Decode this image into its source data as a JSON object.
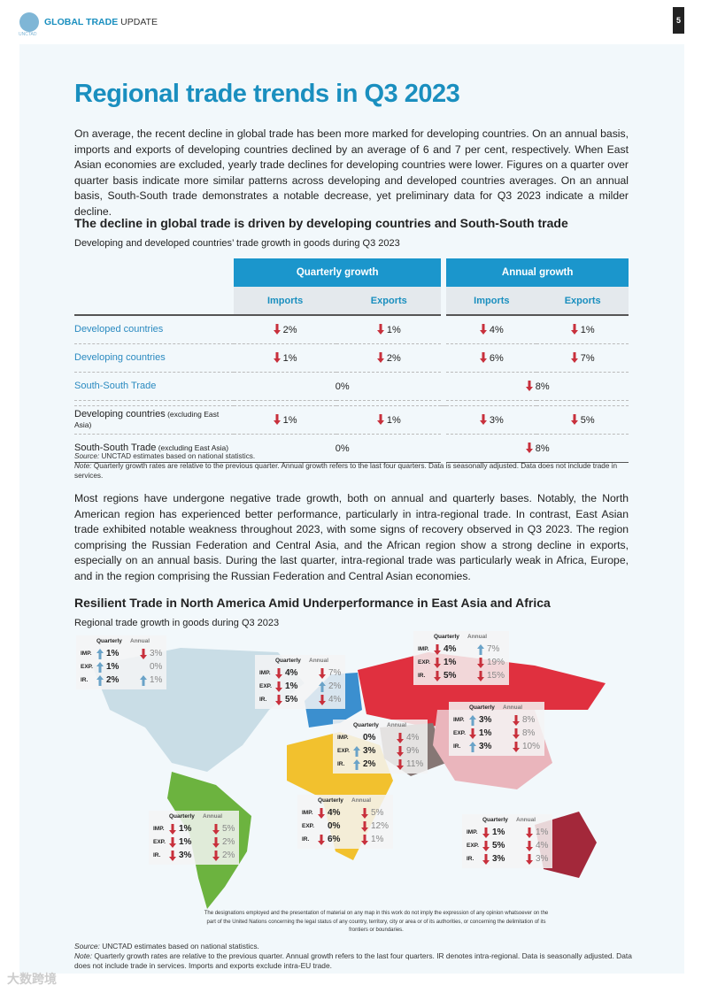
{
  "header": {
    "logo_text": "UNCTAD",
    "title_bold": "GLOBAL TRADE",
    "title_rest": " UPDATE",
    "page_number": "5"
  },
  "title": "Regional trade trends in Q3 2023",
  "intro": "On average, the recent decline in global trade has been more marked for developing countries. On an annual basis, imports and exports of developing countries declined by an average of 6 and 7 per cent, respectively. When East Asian economies are excluded, yearly trade declines for developing countries were lower. Figures on a quarter over quarter basis indicate more similar patterns across developing and developed countries averages. On an annual basis, South-South trade demonstrates a notable decrease, yet preliminary data for Q3 2023 indicate a milder decline.",
  "section1": {
    "heading": "The decline in global trade is driven by developing countries and South-South trade",
    "subheading": "Developing and developed countries’ trade growth in goods during Q3 2023"
  },
  "colors": {
    "accent": "#1b96cc",
    "down": "#c8303c",
    "up": "#6aa3c8"
  },
  "table": {
    "groups": [
      "Quarterly growth",
      "Annual growth"
    ],
    "subheaders": [
      "Imports",
      "Exports",
      "Imports",
      "Exports"
    ],
    "rows": [
      {
        "label": "Developed countries",
        "note": "",
        "cells": [
          {
            "v": "2%",
            "d": "down"
          },
          {
            "v": "1%",
            "d": "down"
          },
          {
            "v": "4%",
            "d": "down"
          },
          {
            "v": "1%",
            "d": "down"
          }
        ]
      },
      {
        "label": "Developing countries",
        "note": "",
        "cells": [
          {
            "v": "1%",
            "d": "down"
          },
          {
            "v": "2%",
            "d": "down"
          },
          {
            "v": "6%",
            "d": "down"
          },
          {
            "v": "7%",
            "d": "down"
          }
        ]
      },
      {
        "label": "South-South Trade",
        "note": "",
        "merged": [
          {
            "v": "0%",
            "d": "none"
          },
          {
            "v": "8%",
            "d": "down"
          }
        ]
      },
      {
        "label": "Developing countries",
        "note": " (excluding East Asia)",
        "cells": [
          {
            "v": "1%",
            "d": "down"
          },
          {
            "v": "1%",
            "d": "down"
          },
          {
            "v": "3%",
            "d": "down"
          },
          {
            "v": "5%",
            "d": "down"
          }
        ]
      },
      {
        "label": "South-South Trade",
        "note": " (excluding East Asia)",
        "merged": [
          {
            "v": "0%",
            "d": "none"
          },
          {
            "v": "8%",
            "d": "down"
          }
        ]
      }
    ],
    "source_label": "Source:",
    "source": " UNCTAD estimates based on national statistics.",
    "note_label": "Note:",
    "note": " Quarterly growth rates are relative to the previous quarter. Annual growth refers to the last four quarters. Data is seasonally adjusted. Data does not include trade in services."
  },
  "para2": "Most regions have undergone negative trade growth, both on annual and quarterly bases. Notably, the North American region has experienced better performance, particularly in intra-regional trade. In contrast, East Asian trade exhibited notable weakness throughout 2023, with some signs of recovery observed in Q3 2023. The region comprising the Russian Federation and Central Asia, and the African region show a strong decline in exports, especially on an annual basis. During the last quarter, intra-regional trade was particularly weak in Africa, Europe, and in the region comprising the Russian Federation and Central Asian economies.",
  "section2": {
    "heading": "Resilient Trade in North America Amid Underperformance in East Asia and Africa",
    "subheading": "Regional trade growth in goods during Q3 2023"
  },
  "map": {
    "col_quarterly": "Quarterly",
    "col_annual": "Annual",
    "row_labels": [
      "IMP.",
      "EXP.",
      "IR."
    ],
    "regions": [
      {
        "id": "north-america",
        "rows": [
          [
            {
              "v": "1%",
              "d": "up"
            },
            {
              "v": "3%",
              "d": "down"
            }
          ],
          [
            {
              "v": "1%",
              "d": "up"
            },
            {
              "v": "0%",
              "d": "none"
            }
          ],
          [
            {
              "v": "2%",
              "d": "up"
            },
            {
              "v": "1%",
              "d": "up"
            }
          ]
        ]
      },
      {
        "id": "europe",
        "rows": [
          [
            {
              "v": "4%",
              "d": "down"
            },
            {
              "v": "7%",
              "d": "down"
            }
          ],
          [
            {
              "v": "1%",
              "d": "down"
            },
            {
              "v": "2%",
              "d": "up"
            }
          ],
          [
            {
              "v": "5%",
              "d": "down"
            },
            {
              "v": "4%",
              "d": "down"
            }
          ]
        ]
      },
      {
        "id": "russia-central-asia",
        "rows": [
          [
            {
              "v": "4%",
              "d": "down"
            },
            {
              "v": "7%",
              "d": "up"
            }
          ],
          [
            {
              "v": "1%",
              "d": "down"
            },
            {
              "v": "19%",
              "d": "down"
            }
          ],
          [
            {
              "v": "5%",
              "d": "down"
            },
            {
              "v": "15%",
              "d": "down"
            }
          ]
        ]
      },
      {
        "id": "east-asia",
        "rows": [
          [
            {
              "v": "3%",
              "d": "up"
            },
            {
              "v": "8%",
              "d": "down"
            }
          ],
          [
            {
              "v": "1%",
              "d": "down"
            },
            {
              "v": "8%",
              "d": "down"
            }
          ],
          [
            {
              "v": "3%",
              "d": "up"
            },
            {
              "v": "10%",
              "d": "down"
            }
          ]
        ]
      },
      {
        "id": "west-asia",
        "rows": [
          [
            {
              "v": "0%",
              "d": "none"
            },
            {
              "v": "4%",
              "d": "down"
            }
          ],
          [
            {
              "v": "3%",
              "d": "up"
            },
            {
              "v": "9%",
              "d": "down"
            }
          ],
          [
            {
              "v": "2%",
              "d": "up"
            },
            {
              "v": "11%",
              "d": "down"
            }
          ]
        ]
      },
      {
        "id": "latin-america",
        "rows": [
          [
            {
              "v": "1%",
              "d": "down"
            },
            {
              "v": "5%",
              "d": "down"
            }
          ],
          [
            {
              "v": "1%",
              "d": "down"
            },
            {
              "v": "2%",
              "d": "down"
            }
          ],
          [
            {
              "v": "3%",
              "d": "down"
            },
            {
              "v": "2%",
              "d": "down"
            }
          ]
        ]
      },
      {
        "id": "africa",
        "rows": [
          [
            {
              "v": "4%",
              "d": "down"
            },
            {
              "v": "5%",
              "d": "down"
            }
          ],
          [
            {
              "v": "0%",
              "d": "none"
            },
            {
              "v": "12%",
              "d": "down"
            }
          ],
          [
            {
              "v": "6%",
              "d": "down"
            },
            {
              "v": "1%",
              "d": "down"
            }
          ]
        ]
      },
      {
        "id": "south-east-asia-oceania",
        "rows": [
          [
            {
              "v": "1%",
              "d": "down"
            },
            {
              "v": "1%",
              "d": "down"
            }
          ],
          [
            {
              "v": "5%",
              "d": "down"
            },
            {
              "v": "4%",
              "d": "down"
            }
          ],
          [
            {
              "v": "3%",
              "d": "down"
            },
            {
              "v": "3%",
              "d": "down"
            }
          ]
        ]
      }
    ],
    "disclaimer": "The designations employed and the presentation of material on any map in this work do not imply the expression of any opinion whatsoever on the part of the United Nations concerning the legal status of any country, territory, city or area or of its authorities, or concerning the delimitation of its frontiers or boundaries."
  },
  "footnote": {
    "source_label": "Source:",
    "source": " UNCTAD estimates based on national statistics.",
    "note_label": "Note:",
    "note": " Quarterly growth rates are relative to the previous quarter. Annual growth refers to the last four quarters. IR denotes intra-regional. Data is seasonally adjusted. Data does not include trade in services. Imports and exports exclude intra-EU trade."
  },
  "watermark": "大数跨境"
}
